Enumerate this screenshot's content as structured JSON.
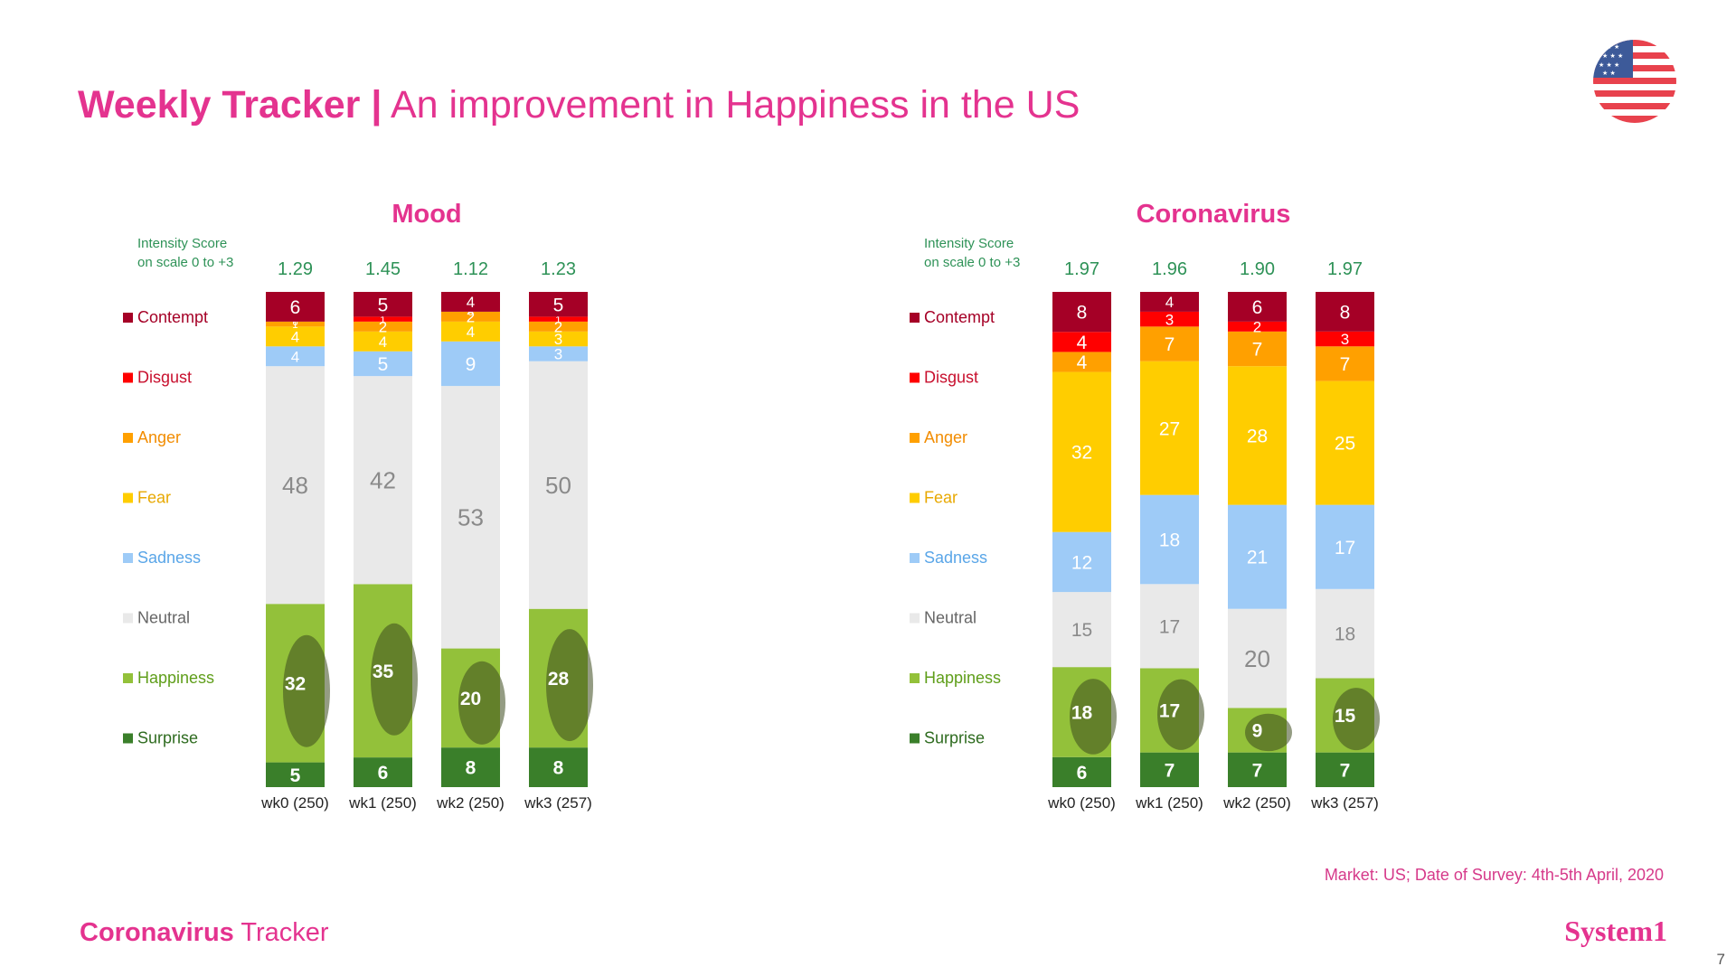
{
  "title": {
    "bold": "Weekly Tracker |",
    "rest": "An improvement in Happiness in the US"
  },
  "flag_icon": "us-flag-icon",
  "footnote": "Market: US; Date of Survey: 4th-5th April, 2020",
  "brand": {
    "left_bold": "Coronavirus",
    "left_rest": "Tracker",
    "right": "System1"
  },
  "page_number": "7",
  "colors": {
    "Contempt": "#a50026",
    "Disgust": "#ff0000",
    "Anger": "#ffa000",
    "Fear": "#ffcd00",
    "Sadness": "#9ecbf7",
    "Neutral": "#e9e9e9",
    "Happiness": "#93c13a",
    "Surprise": "#3a7f2a",
    "accent_pink": "#e4338f",
    "score_green": "#2e9257"
  },
  "label_colors": {
    "Contempt": "#a50026",
    "Disgust": "#c8102e",
    "Anger": "#f28c00",
    "Fear": "#e8a800",
    "Sadness": "#5aa6e8",
    "Neutral": "#666666",
    "Happiness": "#5f9e1a",
    "Surprise": "#2e6b1f"
  },
  "chart_data": [
    {
      "type": "bar",
      "stacked": true,
      "title": "Mood",
      "intensity_label": [
        "Intensity Score",
        "on scale 0 to +3"
      ],
      "categories": [
        "wk0 (250)",
        "wk1 (250)",
        "wk2 (250)",
        "wk3 (257)"
      ],
      "intensity_scores": [
        "1.29",
        "1.45",
        "1.12",
        "1.23"
      ],
      "legend_order": [
        "Contempt",
        "Disgust",
        "Anger",
        "Fear",
        "Sadness",
        "Neutral",
        "Happiness",
        "Surprise"
      ],
      "series": [
        {
          "name": "Surprise",
          "values": [
            5,
            6,
            8,
            8
          ]
        },
        {
          "name": "Happiness",
          "values": [
            32,
            35,
            20,
            28
          ]
        },
        {
          "name": "Neutral",
          "values": [
            48,
            42,
            53,
            50
          ]
        },
        {
          "name": "Sadness",
          "values": [
            4,
            5,
            9,
            3
          ]
        },
        {
          "name": "Fear",
          "values": [
            4,
            4,
            4,
            3
          ]
        },
        {
          "name": "Anger",
          "values": [
            1,
            2,
            2,
            2
          ]
        },
        {
          "name": "Disgust",
          "values": [
            0,
            1,
            0,
            1
          ]
        },
        {
          "name": "Contempt",
          "values": [
            6,
            5,
            4,
            5
          ]
        }
      ],
      "ylim": [
        0,
        100
      ]
    },
    {
      "type": "bar",
      "stacked": true,
      "title": "Coronavirus",
      "intensity_label": [
        "Intensity Score",
        "on scale 0 to +3"
      ],
      "categories": [
        "wk0 (250)",
        "wk1 (250)",
        "wk2 (250)",
        "wk3 (257)"
      ],
      "intensity_scores": [
        "1.97",
        "1.96",
        "1.90",
        "1.97"
      ],
      "legend_order": [
        "Contempt",
        "Disgust",
        "Anger",
        "Fear",
        "Sadness",
        "Neutral",
        "Happiness",
        "Surprise"
      ],
      "series": [
        {
          "name": "Surprise",
          "values": [
            6,
            7,
            7,
            7
          ]
        },
        {
          "name": "Happiness",
          "values": [
            18,
            17,
            9,
            15
          ]
        },
        {
          "name": "Neutral",
          "values": [
            15,
            17,
            20,
            18
          ]
        },
        {
          "name": "Sadness",
          "values": [
            12,
            18,
            21,
            17
          ]
        },
        {
          "name": "Fear",
          "values": [
            32,
            27,
            28,
            25
          ]
        },
        {
          "name": "Anger",
          "values": [
            4,
            7,
            7,
            7
          ]
        },
        {
          "name": "Disgust",
          "values": [
            4,
            3,
            2,
            3
          ]
        },
        {
          "name": "Contempt",
          "values": [
            8,
            4,
            6,
            8
          ]
        }
      ],
      "ylim": [
        0,
        100
      ]
    }
  ]
}
